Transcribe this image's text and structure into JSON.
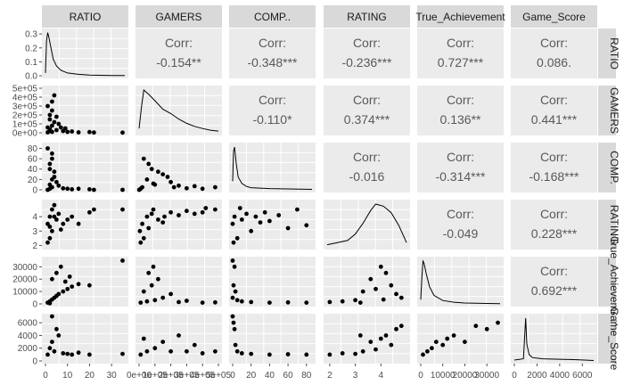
{
  "chart_data": {
    "type": "scatter-matrix",
    "variables": [
      "RATIO",
      "GAMERS",
      "COMP.",
      "RATING",
      "True_Achievement",
      "Game_Score"
    ],
    "column_strip_labels": [
      "RATIO",
      "GAMERS",
      "COMP..",
      "RATING",
      "True_Achievement",
      "Game_Score"
    ],
    "row_strip_labels": [
      "RATIO",
      "GAMERS",
      "COMP.",
      "RATING",
      "True_Achievement",
      "Game_Score"
    ],
    "corr_label": "Corr:",
    "correlations": [
      {
        "row": 0,
        "col": 1,
        "value": "-0.154**"
      },
      {
        "row": 0,
        "col": 2,
        "value": "-0.348***"
      },
      {
        "row": 0,
        "col": 3,
        "value": "-0.236***"
      },
      {
        "row": 0,
        "col": 4,
        "value": "0.727***"
      },
      {
        "row": 0,
        "col": 5,
        "value": "0.086."
      },
      {
        "row": 1,
        "col": 2,
        "value": "-0.110*"
      },
      {
        "row": 1,
        "col": 3,
        "value": "0.374***"
      },
      {
        "row": 1,
        "col": 4,
        "value": "0.136**"
      },
      {
        "row": 1,
        "col": 5,
        "value": "0.441***"
      },
      {
        "row": 2,
        "col": 3,
        "value": "-0.016"
      },
      {
        "row": 2,
        "col": 4,
        "value": "-0.314***"
      },
      {
        "row": 2,
        "col": 5,
        "value": "-0.168***"
      },
      {
        "row": 3,
        "col": 4,
        "value": "-0.049"
      },
      {
        "row": 3,
        "col": 5,
        "value": "0.228***"
      },
      {
        "row": 4,
        "col": 5,
        "value": "0.692***"
      }
    ],
    "axes": [
      {
        "name": "RATIO",
        "range": [
          0,
          36
        ],
        "ticks": [
          0,
          10,
          20,
          30
        ],
        "tick_labels": [
          "0",
          "10",
          "20",
          "30"
        ]
      },
      {
        "name": "GAMERS",
        "range": [
          0,
          500000
        ],
        "ticks": [
          0,
          100000,
          200000,
          300000,
          400000,
          500000
        ],
        "tick_labels": [
          "0e+00",
          "1e+05",
          "2e+05",
          "3e+05",
          "4e+05",
          "5e+05"
        ]
      },
      {
        "name": "COMP.",
        "range": [
          0,
          86
        ],
        "ticks": [
          0,
          20,
          40,
          60,
          80
        ],
        "tick_labels": [
          "0",
          "20",
          "40",
          "60",
          "80"
        ]
      },
      {
        "name": "RATING",
        "range": [
          1.9,
          5.0
        ],
        "ticks": [
          2,
          3,
          4
        ],
        "tick_labels": [
          "2",
          "3",
          "4"
        ]
      },
      {
        "name": "True_Achievement",
        "range": [
          0,
          36000
        ],
        "ticks": [
          0,
          10000,
          20000,
          30000
        ],
        "tick_labels": [
          "0",
          "10000",
          "20000",
          "30000"
        ]
      },
      {
        "name": "Game_Score",
        "range": [
          0,
          7000
        ],
        "ticks": [
          0,
          2000,
          4000,
          6000
        ],
        "tick_labels": [
          "0",
          "2000",
          "4000",
          "6000"
        ]
      }
    ],
    "diag_density_ylim": [
      {
        "name": "RATIO",
        "range": [
          0,
          0.32
        ],
        "ticks": [
          0,
          0.1,
          0.2,
          0.3
        ],
        "tick_labels": [
          "0.0",
          "0.1",
          "0.2",
          "0.3"
        ]
      }
    ],
    "scatter_points": {
      "1_0": [
        [
          1,
          5000
        ],
        [
          2,
          20000
        ],
        [
          2,
          40000
        ],
        [
          3,
          80000
        ],
        [
          2,
          150000
        ],
        [
          3,
          250000
        ],
        [
          1,
          300000
        ],
        [
          4,
          420000
        ],
        [
          5,
          30000
        ],
        [
          6,
          100000
        ],
        [
          7,
          60000
        ],
        [
          3,
          350000
        ],
        [
          8,
          20000
        ],
        [
          10,
          10000
        ],
        [
          12,
          15000
        ],
        [
          9,
          50000
        ],
        [
          15,
          5000
        ],
        [
          20,
          8000
        ],
        [
          22,
          3000
        ],
        [
          35,
          2000
        ],
        [
          2,
          200000
        ],
        [
          4,
          120000
        ],
        [
          1,
          60000
        ],
        [
          5,
          180000
        ],
        [
          3,
          10000
        ]
      ],
      "2_0": [
        [
          1,
          0
        ],
        [
          2,
          2
        ],
        [
          3,
          5
        ],
        [
          2,
          10
        ],
        [
          3,
          20
        ],
        [
          4,
          35
        ],
        [
          2,
          50
        ],
        [
          3,
          60
        ],
        [
          1,
          80
        ],
        [
          5,
          15
        ],
        [
          6,
          8
        ],
        [
          8,
          3
        ],
        [
          10,
          2
        ],
        [
          12,
          1
        ],
        [
          15,
          2
        ],
        [
          20,
          1
        ],
        [
          22,
          0
        ],
        [
          35,
          0
        ],
        [
          2,
          40
        ],
        [
          4,
          25
        ],
        [
          3,
          70
        ]
      ],
      "2_1": [
        [
          1000,
          0
        ],
        [
          20000,
          5
        ],
        [
          50000,
          20
        ],
        [
          80000,
          40
        ],
        [
          100000,
          10
        ],
        [
          150000,
          30
        ],
        [
          200000,
          15
        ],
        [
          250000,
          8
        ],
        [
          300000,
          3
        ],
        [
          400000,
          2
        ],
        [
          480000,
          5
        ],
        [
          30000,
          60
        ],
        [
          60000,
          50
        ],
        [
          120000,
          35
        ],
        [
          180000,
          25
        ],
        [
          10000,
          2
        ],
        [
          90000,
          12
        ],
        [
          220000,
          5
        ],
        [
          350000,
          7
        ]
      ],
      "3_0": [
        [
          1,
          3.5
        ],
        [
          2,
          4.0
        ],
        [
          3,
          4.5
        ],
        [
          2,
          2.5
        ],
        [
          3,
          3.0
        ],
        [
          4,
          4.8
        ],
        [
          5,
          3.8
        ],
        [
          6,
          4.2
        ],
        [
          8,
          3.5
        ],
        [
          10,
          3.8
        ],
        [
          12,
          4.0
        ],
        [
          15,
          3.5
        ],
        [
          20,
          4.3
        ],
        [
          22,
          4.5
        ],
        [
          35,
          4.5
        ],
        [
          2,
          3.3
        ],
        [
          4,
          4.0
        ],
        [
          1,
          2.2
        ],
        [
          7,
          3.1
        ]
      ],
      "3_1": [
        [
          5000,
          3.0
        ],
        [
          20000,
          3.5
        ],
        [
          50000,
          4.0
        ],
        [
          80000,
          4.2
        ],
        [
          120000,
          3.8
        ],
        [
          160000,
          4.0
        ],
        [
          200000,
          4.3
        ],
        [
          250000,
          4.1
        ],
        [
          300000,
          4.4
        ],
        [
          350000,
          4.2
        ],
        [
          420000,
          4.6
        ],
        [
          480000,
          4.5
        ],
        [
          30000,
          2.5
        ],
        [
          60000,
          3.2
        ],
        [
          90000,
          4.5
        ],
        [
          150000,
          3.6
        ],
        [
          10000,
          2.2
        ],
        [
          400000,
          4.3
        ]
      ],
      "3_2": [
        [
          0,
          3.5
        ],
        [
          2,
          4.0
        ],
        [
          5,
          2.5
        ],
        [
          10,
          3.8
        ],
        [
          15,
          4.2
        ],
        [
          20,
          3.0
        ],
        [
          25,
          4.0
        ],
        [
          30,
          3.6
        ],
        [
          35,
          4.3
        ],
        [
          40,
          3.7
        ],
        [
          50,
          4.1
        ],
        [
          60,
          3.2
        ],
        [
          70,
          4.5
        ],
        [
          80,
          3.4
        ],
        [
          1,
          2.2
        ],
        [
          8,
          4.6
        ]
      ],
      "4_0": [
        [
          1,
          1000
        ],
        [
          2,
          2000
        ],
        [
          3,
          3500
        ],
        [
          4,
          5000
        ],
        [
          5,
          6500
        ],
        [
          6,
          8000
        ],
        [
          8,
          10000
        ],
        [
          10,
          12000
        ],
        [
          12,
          14000
        ],
        [
          15,
          16000
        ],
        [
          3,
          20000
        ],
        [
          5,
          25000
        ],
        [
          7,
          30000
        ],
        [
          2,
          500
        ],
        [
          20,
          15000
        ],
        [
          35,
          35000
        ],
        [
          9,
          18000
        ],
        [
          11,
          22000
        ]
      ],
      "4_1": [
        [
          10000,
          1000
        ],
        [
          50000,
          2000
        ],
        [
          100000,
          3000
        ],
        [
          150000,
          5000
        ],
        [
          200000,
          8000
        ],
        [
          80000,
          15000
        ],
        [
          120000,
          20000
        ],
        [
          60000,
          25000
        ],
        [
          250000,
          1500
        ],
        [
          300000,
          2500
        ],
        [
          400000,
          1000
        ],
        [
          480000,
          1200
        ],
        [
          30000,
          10000
        ],
        [
          90000,
          30000
        ]
      ],
      "4_2": [
        [
          0,
          5000
        ],
        [
          1,
          15000
        ],
        [
          2,
          30000
        ],
        [
          3,
          10000
        ],
        [
          5,
          3000
        ],
        [
          10,
          2000
        ],
        [
          20,
          1500
        ],
        [
          40,
          1000
        ],
        [
          60,
          1200
        ],
        [
          80,
          1000
        ],
        [
          0,
          35000
        ]
      ],
      "4_3": [
        [
          2,
          1500
        ],
        [
          2.5,
          2000
        ],
        [
          3,
          3000
        ],
        [
          3.3,
          10000
        ],
        [
          3.6,
          20000
        ],
        [
          3.8,
          12000
        ],
        [
          4.0,
          30000
        ],
        [
          4.2,
          25000
        ],
        [
          4.4,
          15000
        ],
        [
          4.6,
          8000
        ],
        [
          4.8,
          5000
        ],
        [
          3.2,
          1000
        ],
        [
          4.1,
          3500
        ]
      ],
      "5_0": [
        [
          1,
          1000
        ],
        [
          2,
          2000
        ],
        [
          3,
          3000
        ],
        [
          4,
          1500
        ],
        [
          5,
          5000
        ],
        [
          6,
          4000
        ],
        [
          3,
          7000
        ],
        [
          8,
          1200
        ],
        [
          10,
          1100
        ],
        [
          12,
          1000
        ],
        [
          15,
          1300
        ],
        [
          20,
          1000
        ],
        [
          35,
          1100
        ]
      ],
      "5_1": [
        [
          10000,
          1000
        ],
        [
          50000,
          1500
        ],
        [
          100000,
          2000
        ],
        [
          150000,
          3000
        ],
        [
          200000,
          1500
        ],
        [
          250000,
          4000
        ],
        [
          300000,
          1500
        ],
        [
          350000,
          2500
        ],
        [
          400000,
          1200
        ],
        [
          480000,
          1500
        ],
        [
          30000,
          3500
        ]
      ],
      "5_2": [
        [
          0,
          7000
        ],
        [
          1,
          6000
        ],
        [
          2,
          5000
        ],
        [
          3,
          2500
        ],
        [
          5,
          1500
        ],
        [
          10,
          1200
        ],
        [
          20,
          1100
        ],
        [
          40,
          1000
        ],
        [
          60,
          1050
        ],
        [
          80,
          1000
        ]
      ],
      "5_3": [
        [
          2,
          1000
        ],
        [
          2.5,
          1200
        ],
        [
          3,
          1100
        ],
        [
          3.3,
          1500
        ],
        [
          3.6,
          3000
        ],
        [
          3.8,
          1800
        ],
        [
          4.0,
          3500
        ],
        [
          4.2,
          4000
        ],
        [
          4.4,
          2500
        ],
        [
          4.6,
          5000
        ],
        [
          4.8,
          5500
        ],
        [
          3.2,
          4000
        ]
      ],
      "5_4": [
        [
          1000,
          1000
        ],
        [
          3000,
          1500
        ],
        [
          5000,
          2000
        ],
        [
          7000,
          3000
        ],
        [
          10000,
          2500
        ],
        [
          12000,
          3500
        ],
        [
          15000,
          4000
        ],
        [
          20000,
          3000
        ],
        [
          25000,
          5500
        ],
        [
          30000,
          5000
        ],
        [
          35000,
          6000
        ]
      ]
    }
  }
}
